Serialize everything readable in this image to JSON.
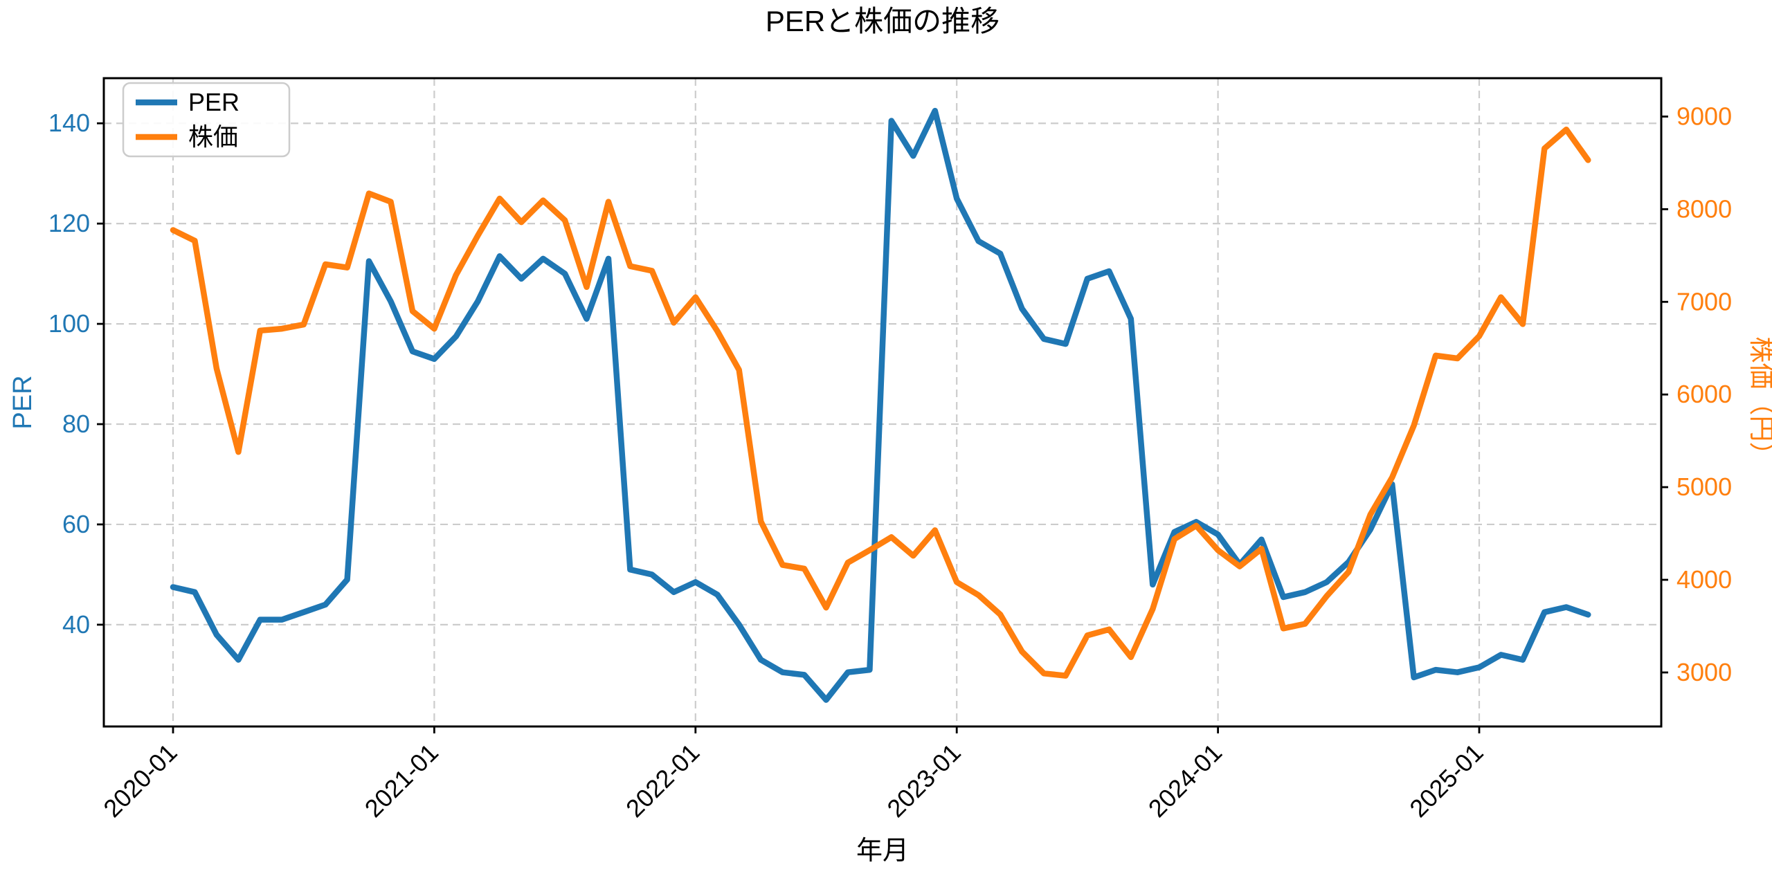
{
  "title": "PERと株価の推移",
  "colors": {
    "per_line": "#1f77b4",
    "price_line": "#ff7f0e",
    "grid": "#cccccc",
    "axis": "#000000",
    "legend_border": "#cccccc",
    "background": "#ffffff"
  },
  "legend": {
    "items": [
      {
        "label": "PER",
        "color": "#1f77b4"
      },
      {
        "label": "株価",
        "color": "#ff7f0e"
      }
    ],
    "position": "upper left"
  },
  "chart_data": {
    "type": "line",
    "title": "PERと株価の推移",
    "xlabel": "年月",
    "ylabel_left": "PER",
    "ylabel_right": "株価（円）",
    "grid": true,
    "legend_position": "upper left",
    "x_tick_labels": [
      "2020-01",
      "2021-01",
      "2022-01",
      "2023-01",
      "2024-01",
      "2025-01"
    ],
    "left_ticks": [
      40,
      60,
      80,
      100,
      120,
      140
    ],
    "right_ticks": [
      3000,
      4000,
      5000,
      6000,
      7000,
      8000,
      9000
    ],
    "ylim_left": [
      19.7,
      149.0
    ],
    "ylim_right": [
      2417,
      9414
    ],
    "x": [
      "2020-01",
      "2020-02",
      "2020-03",
      "2020-04",
      "2020-05",
      "2020-06",
      "2020-07",
      "2020-08",
      "2020-09",
      "2020-10",
      "2020-11",
      "2020-12",
      "2021-01",
      "2021-02",
      "2021-03",
      "2021-04",
      "2021-05",
      "2021-06",
      "2021-07",
      "2021-08",
      "2021-09",
      "2021-10",
      "2021-11",
      "2021-12",
      "2022-01",
      "2022-02",
      "2022-03",
      "2022-04",
      "2022-05",
      "2022-06",
      "2022-07",
      "2022-08",
      "2022-09",
      "2022-10",
      "2022-11",
      "2022-12",
      "2023-01",
      "2023-02",
      "2023-03",
      "2023-04",
      "2023-05",
      "2023-06",
      "2023-07",
      "2023-08",
      "2023-09",
      "2023-10",
      "2023-11",
      "2023-12",
      "2024-01",
      "2024-02",
      "2024-03",
      "2024-04",
      "2024-05",
      "2024-06",
      "2024-07",
      "2024-08",
      "2024-09",
      "2024-10",
      "2024-11",
      "2024-12",
      "2025-01",
      "2025-02",
      "2025-03",
      "2025-04",
      "2025-05",
      "2025-06"
    ],
    "series": [
      {
        "name": "PER",
        "axis": "left",
        "color": "#1f77b4",
        "values": [
          47.5,
          46.5,
          38,
          33,
          41,
          41,
          42.5,
          44,
          49,
          112.5,
          104.5,
          94.5,
          93,
          97.5,
          104.5,
          113.5,
          109,
          113,
          110,
          101,
          113,
          51,
          50,
          46.5,
          48.5,
          46,
          40,
          33,
          30.5,
          30,
          25,
          30.5,
          31,
          140.5,
          133.5,
          142.5,
          125,
          116.5,
          114,
          103,
          97,
          96,
          109,
          110.5,
          101,
          48,
          58.5,
          60.5,
          58,
          52,
          57,
          45.5,
          46.5,
          48.5,
          52.5,
          59,
          68,
          29.5,
          31,
          30.5,
          31.5,
          34,
          33,
          42.5,
          43.5,
          42
        ]
      },
      {
        "name": "株価",
        "axis": "right",
        "color": "#ff7f0e",
        "values": [
          7775,
          7660,
          6280,
          5380,
          6690,
          6710,
          6755,
          7405,
          7370,
          8170,
          8080,
          6900,
          6710,
          7290,
          7715,
          8115,
          7860,
          8095,
          7880,
          7160,
          8080,
          7385,
          7335,
          6775,
          7050,
          6685,
          6265,
          4630,
          4160,
          4120,
          3700,
          4185,
          4320,
          4460,
          4260,
          4535,
          3975,
          3835,
          3625,
          3225,
          2990,
          2965,
          3400,
          3465,
          3165,
          3685,
          4440,
          4585,
          4320,
          4145,
          4335,
          3475,
          3525,
          3825,
          4085,
          4705,
          5105,
          5665,
          6420,
          6390,
          6630,
          7050,
          6760,
          8655,
          8860,
          8530
        ]
      }
    ]
  }
}
